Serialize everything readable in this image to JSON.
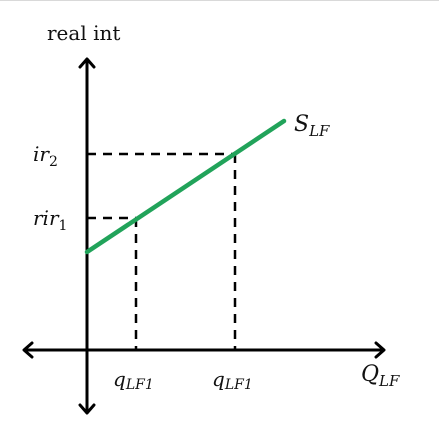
{
  "diagram": {
    "y_axis_label": "real int",
    "x_axis_label": {
      "main": "Q",
      "sub": "LF"
    },
    "curve_label": {
      "main": "S",
      "sub": "LF"
    },
    "y_level_labels": [
      {
        "main": "ir",
        "sub": "2"
      },
      {
        "main": "rir",
        "sub": "1"
      }
    ],
    "x_level_labels": [
      {
        "main": "q",
        "sub": "LF1"
      },
      {
        "main": "q",
        "sub": "LF1"
      }
    ],
    "colors": {
      "supply_curve": "#21a35a",
      "axes": "#000000",
      "guides": "#000000",
      "top_rule": "#d9d9d9"
    }
  }
}
